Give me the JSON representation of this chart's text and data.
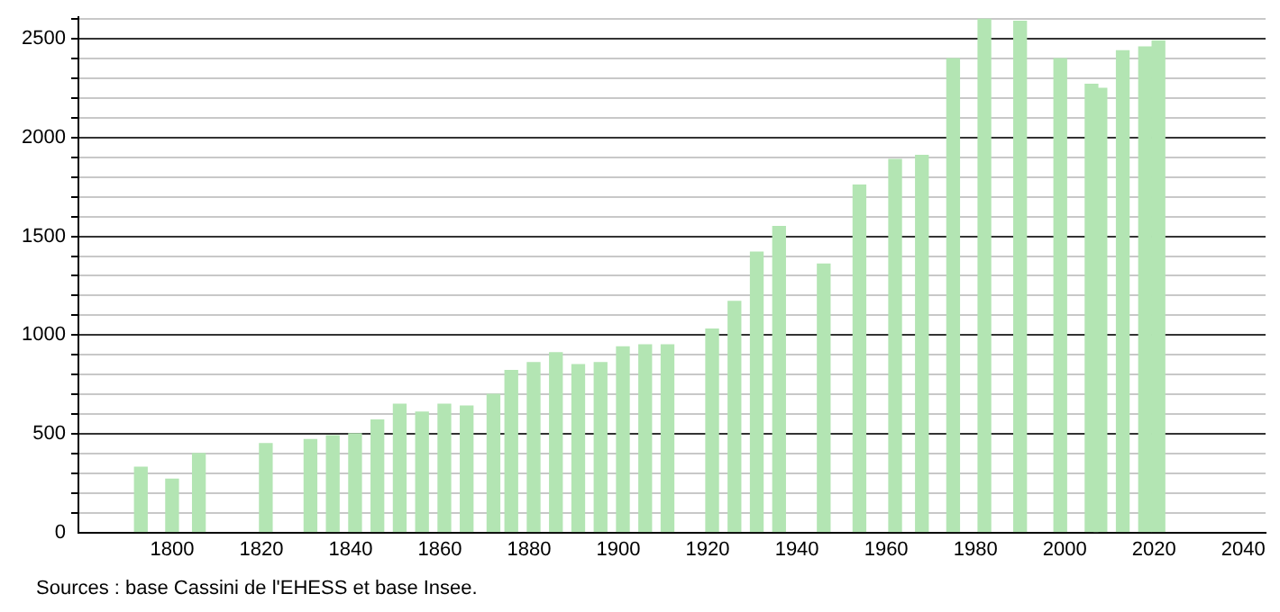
{
  "chart_data": {
    "type": "bar",
    "x": [
      1793,
      1800,
      1806,
      1821,
      1831,
      1836,
      1841,
      1846,
      1851,
      1856,
      1861,
      1866,
      1872,
      1876,
      1881,
      1886,
      1891,
      1896,
      1901,
      1906,
      1911,
      1921,
      1926,
      1931,
      1936,
      1946,
      1954,
      1962,
      1968,
      1975,
      1982,
      1990,
      1999,
      2006,
      2008,
      2013,
      2018,
      2021
    ],
    "values": [
      330,
      270,
      400,
      450,
      470,
      490,
      500,
      570,
      650,
      610,
      650,
      640,
      700,
      820,
      860,
      910,
      850,
      860,
      940,
      950,
      950,
      1030,
      1170,
      1420,
      1550,
      1360,
      1760,
      1890,
      1910,
      2400,
      2600,
      2590,
      2400,
      2270,
      2250,
      2440,
      2460,
      2490
    ],
    "color": "#b3e5b3",
    "xlim": [
      1779,
      2045
    ],
    "xticks": [
      1800,
      1820,
      1840,
      1860,
      1880,
      1900,
      1920,
      1940,
      1960,
      1980,
      2000,
      2020,
      2040
    ],
    "ylim": [
      0,
      2610
    ],
    "yticks": [
      0,
      {
        "value": 100,
        "label": null
      },
      {
        "value": 200,
        "label": null
      },
      {
        "value": 300,
        "label": null
      },
      {
        "value": 400,
        "label": null
      },
      500,
      {
        "value": 600,
        "label": null
      },
      {
        "value": 700,
        "label": null
      },
      {
        "value": 800,
        "label": null
      },
      {
        "value": 900,
        "label": null
      },
      1000,
      {
        "value": 1100,
        "label": null
      },
      {
        "value": 1200,
        "label": null
      },
      {
        "value": 1300,
        "label": null
      },
      {
        "value": 1400,
        "label": null
      },
      1500,
      {
        "value": 1600,
        "label": null
      },
      {
        "value": 1700,
        "label": null
      },
      {
        "value": 1800,
        "label": null
      },
      {
        "value": 1900,
        "label": null
      },
      2000,
      {
        "value": 2100,
        "label": null
      },
      {
        "value": 2200,
        "label": null
      },
      {
        "value": 2300,
        "label": null
      },
      {
        "value": 2400,
        "label": null
      },
      2500,
      {
        "value": 2600,
        "label": null
      }
    ],
    "grid": "y",
    "annotations": [
      "Sources : base Cassini de l'EHESS et base Insee."
    ]
  }
}
